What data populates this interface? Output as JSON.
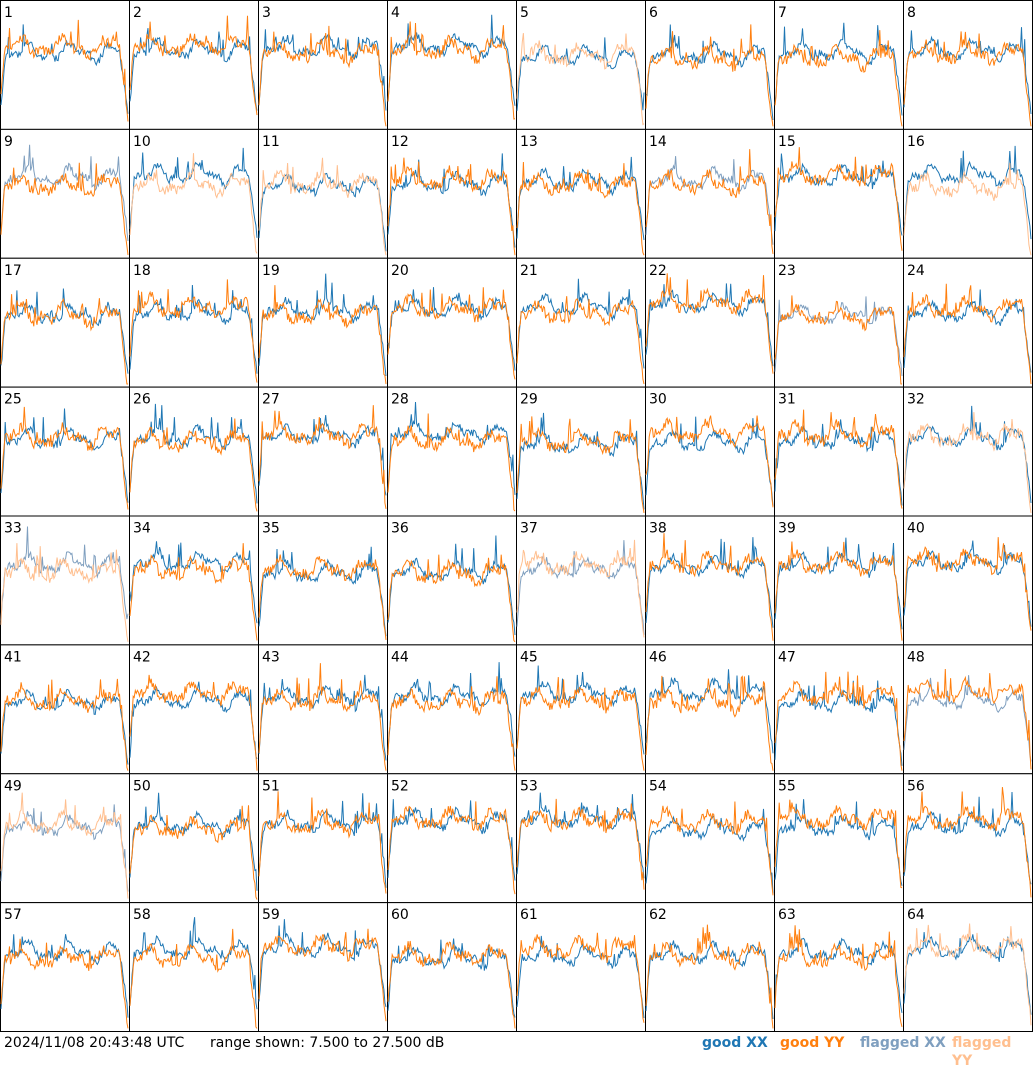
{
  "panels": [
    "1",
    "2",
    "3",
    "4",
    "5",
    "6",
    "7",
    "8",
    "9",
    "10",
    "11",
    "12",
    "13",
    "14",
    "15",
    "16",
    "17",
    "18",
    "19",
    "20",
    "21",
    "22",
    "23",
    "24",
    "25",
    "26",
    "27",
    "28",
    "29",
    "30",
    "31",
    "32",
    "33",
    "34",
    "35",
    "36",
    "37",
    "38",
    "39",
    "40",
    "41",
    "42",
    "43",
    "44",
    "45",
    "46",
    "47",
    "48",
    "49",
    "50",
    "51",
    "52",
    "53",
    "54",
    "55",
    "56",
    "57",
    "58",
    "59",
    "60",
    "61",
    "62",
    "63",
    "64"
  ],
  "timestamp": "2024/11/08 20:43:48 UTC",
  "range_text": "range shown: 7.500 to 27.500 dB",
  "legend": [
    {
      "label": "good",
      "pol": "XX",
      "color": "#1f77b4"
    },
    {
      "label": "good",
      "pol": "YY",
      "color": "#ff7f0e"
    },
    {
      "label": "flagged",
      "pol": "XX",
      "color": "#7f9fbf"
    },
    {
      "label": "flagged",
      "pol": "YY",
      "color": "#ffbf8f"
    }
  ],
  "chart_data": {
    "type": "line",
    "layout": "8x8 small multiples",
    "y_range": [
      7.5,
      27.5
    ],
    "y_units": "dB",
    "series_kinds": [
      "good XX",
      "good YY",
      "flagged XX",
      "flagged YY"
    ],
    "flagged_xx_panels": [
      "9",
      "14",
      "23",
      "33",
      "37",
      "48",
      "49"
    ],
    "flagged_yy_panels": [
      "5",
      "10",
      "11",
      "16",
      "32",
      "33",
      "37",
      "49",
      "64"
    ]
  },
  "colors": {
    "good_xx": "#1f77b4",
    "good_yy": "#ff7f0e",
    "flagged_xx": "#7f9fbf",
    "flagged_yy": "#ffbf8f"
  }
}
